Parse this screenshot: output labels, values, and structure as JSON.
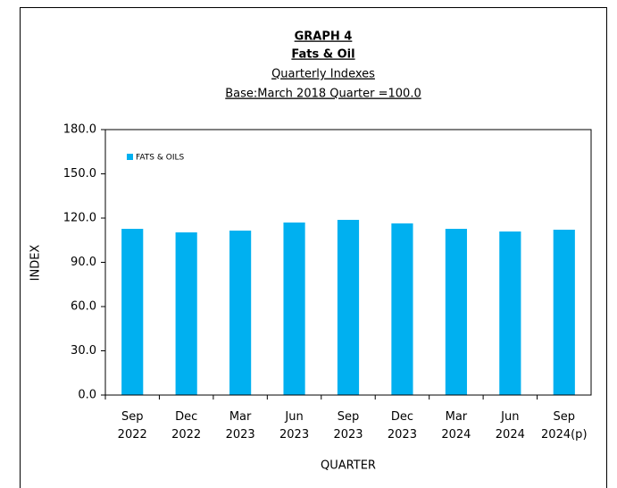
{
  "chart_data": {
    "type": "bar",
    "title": "GRAPH 4",
    "subtitle": "Fats & Oil",
    "subtitle2": "Quarterly Indexes",
    "subtitle3": "Base:March 2018 Quarter =100.0",
    "x_label": "QUARTER",
    "y_label": "INDEX",
    "categories": [
      "Sep 2022",
      "Dec 2022",
      "Mar 2023",
      "Jun 2023",
      "Sep 2023",
      "Dec 2023",
      "Mar 2024",
      "Jun 2024",
      "Sep 2024(p)"
    ],
    "series": [
      {
        "name": "FATS & OILS",
        "color": "#00b0f0",
        "values": [
          112.7,
          110.3,
          111.5,
          117.0,
          118.8,
          116.4,
          112.7,
          110.9,
          112.1
        ]
      }
    ],
    "ylim": [
      0,
      180
    ],
    "yticks": [
      {
        "value": 0,
        "label": "0.0"
      },
      {
        "value": 30,
        "label": "30.0"
      },
      {
        "value": 60,
        "label": "60.0"
      },
      {
        "value": 90,
        "label": "90.0"
      },
      {
        "value": 120,
        "label": "120.0"
      },
      {
        "value": 150,
        "label": "150.0"
      },
      {
        "value": 180,
        "label": "180.0"
      }
    ],
    "legend": "top-left"
  }
}
